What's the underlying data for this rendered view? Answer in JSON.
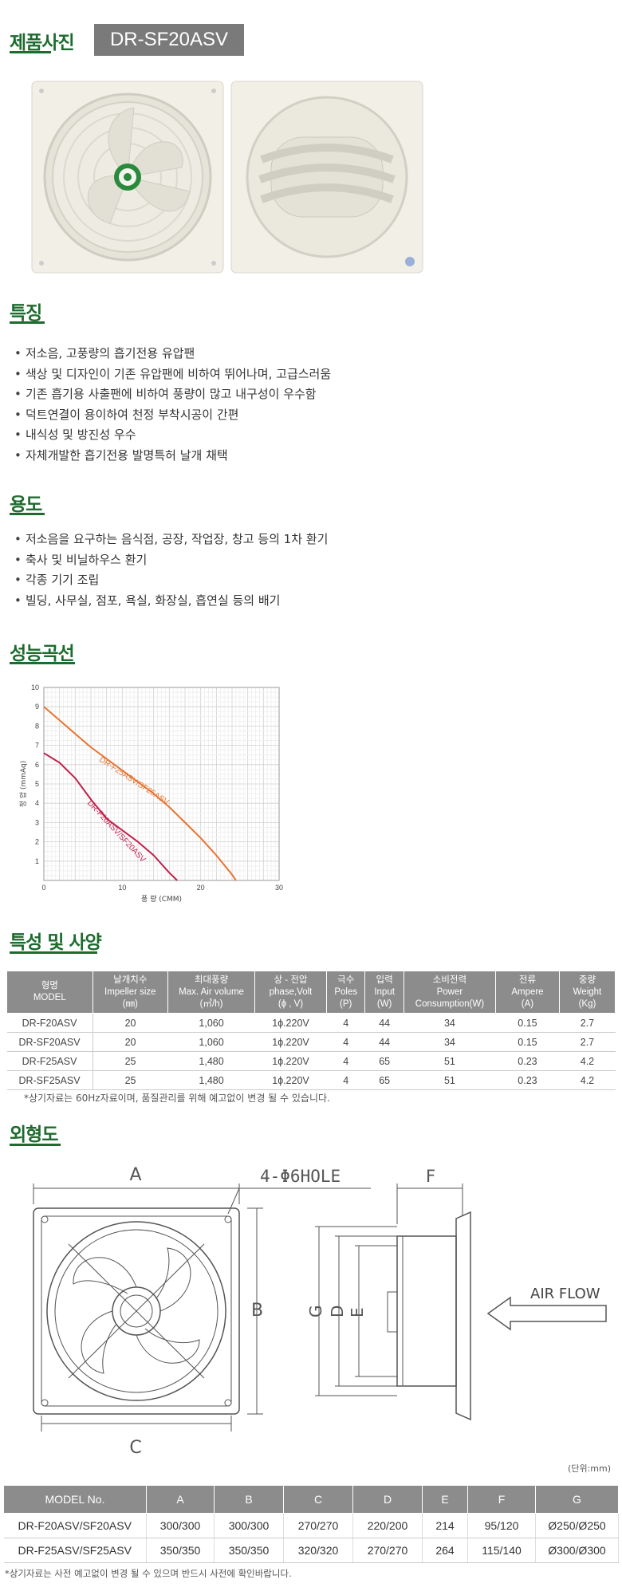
{
  "sections": {
    "photo": "제품사진",
    "features": "특징",
    "usage": "용도",
    "curve": "성능곡선",
    "spec": "특성 및 사양",
    "outline": "외형도"
  },
  "model_tag": "DR-SF20ASV",
  "features": [
    "저소음, 고풍량의 흡기전용 유압팬",
    "색상 및 디자인이 기존 유압팬에 비하여 뛰어나며, 고급스러움",
    "기존 흡기용 사출팬에 비하여 풍량이 많고 내구성이 우수함",
    "덕트연결이 용이하여 천정 부착시공이 간편",
    "내식성 및 방진성 우수",
    "자체개발한 흡기전용 발명특허 날개 채택"
  ],
  "usage": [
    "저소음을 요구하는 음식점, 공장, 작업장, 창고 등의 1차 환기",
    "축사 및 비닐하우스 환기",
    "각종 기기 조립",
    "빌딩, 사무실, 점포, 욕실, 화장실, 흡연실 등의 배기"
  ],
  "chart_data": {
    "type": "line",
    "xlabel": "풍 량 (CMM)",
    "ylabel": "정 압 (mmAq)",
    "xlim": [
      0,
      30
    ],
    "ylim": [
      0,
      10
    ],
    "xticks": [
      "0",
      "10",
      "20",
      "30"
    ],
    "yticks": [
      "1",
      "2",
      "3",
      "4",
      "5",
      "6",
      "7",
      "8",
      "9",
      "10"
    ],
    "grid": true,
    "series": [
      {
        "name": "DR-F25ASV/SF25ASV",
        "color": "#e8732e",
        "x": [
          0,
          2,
          4,
          6,
          8,
          10,
          12,
          14,
          16,
          18,
          20,
          22,
          24,
          24.5
        ],
        "y": [
          9.0,
          8.3,
          7.6,
          6.9,
          6.3,
          5.7,
          5.1,
          4.5,
          3.8,
          3.0,
          2.2,
          1.3,
          0.3,
          0
        ]
      },
      {
        "name": "DR-F20ASV/SF20ASV",
        "color": "#c21f4a",
        "x": [
          0,
          2,
          4,
          6,
          8,
          10,
          12,
          14,
          16,
          17
        ],
        "y": [
          6.6,
          6.1,
          5.3,
          4.2,
          3.2,
          2.6,
          2.0,
          1.3,
          0.4,
          0
        ]
      }
    ]
  },
  "spec_table": {
    "headers": [
      [
        "형명",
        "MODEL"
      ],
      [
        "날개치수",
        "Impeller size",
        "(㎜)"
      ],
      [
        "최대풍량",
        "Max. Air volume",
        "(㎥/h)"
      ],
      [
        "상 - 전압",
        "phase,Volt",
        "(ɸ , V)"
      ],
      [
        "극수",
        "Poles",
        "(P)"
      ],
      [
        "입력",
        "Input",
        "(W)"
      ],
      [
        "소비전력",
        "Power",
        "Consumption(W)"
      ],
      [
        "전류",
        "Ampere",
        "(A)"
      ],
      [
        "중량",
        "Weight",
        "(Kg)"
      ]
    ],
    "rows": [
      [
        "DR-F20ASV",
        "20",
        "1,060",
        "1ɸ.220V",
        "4",
        "44",
        "34",
        "0.15",
        "2.7"
      ],
      [
        "DR-SF20ASV",
        "20",
        "1,060",
        "1ɸ.220V",
        "4",
        "44",
        "34",
        "0.15",
        "2.7"
      ],
      [
        "DR-F25ASV",
        "25",
        "1,480",
        "1ɸ.220V",
        "4",
        "65",
        "51",
        "0.23",
        "4.2"
      ],
      [
        "DR-SF25ASV",
        "25",
        "1,480",
        "1ɸ.220V",
        "4",
        "65",
        "51",
        "0.23",
        "4.2"
      ]
    ],
    "note": "*상기자료는 60Hz자료이며, 품질관리를 위해 예고없이 변경 될 수 있습니다."
  },
  "drawing": {
    "labels": {
      "a": "A",
      "b": "B",
      "c": "C",
      "d": "D",
      "e": "E",
      "f": "F",
      "g": "G"
    },
    "hole": "4-Φ6HOLE",
    "airflow": "AIR FLOW",
    "unit": "(단위:mm)"
  },
  "dim_table": {
    "headers": [
      "MODEL No.",
      "A",
      "B",
      "C",
      "D",
      "E",
      "F",
      "G"
    ],
    "rows": [
      [
        "DR-F20ASV/SF20ASV",
        "300/300",
        "300/300",
        "270/270",
        "220/200",
        "214",
        "95/120",
        "Ø250/Ø250"
      ],
      [
        "DR-F25ASV/SF25ASV",
        "350/350",
        "350/350",
        "320/320",
        "270/270",
        "264",
        "115/140",
        "Ø300/Ø300"
      ]
    ],
    "note": "*상기자료는 사전 예고없이 변경 될 수 있으며 반드시 사전에 확인바랍니다."
  }
}
